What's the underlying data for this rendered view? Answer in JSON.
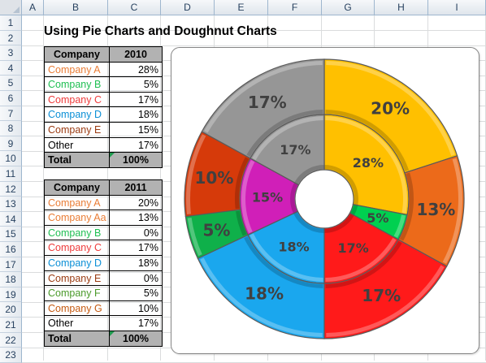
{
  "sheet": {
    "columns": [
      "A",
      "B",
      "C",
      "D",
      "E",
      "F",
      "G",
      "H",
      "I"
    ],
    "rows": [
      "1",
      "2",
      "3",
      "4",
      "5",
      "6",
      "7",
      "8",
      "9",
      "10",
      "11",
      "12",
      "13",
      "14",
      "15",
      "16",
      "17",
      "18",
      "19",
      "20",
      "21",
      "22",
      "23"
    ],
    "title": "Using Pie Charts and Doughnut Charts"
  },
  "table1": {
    "header": {
      "company": "Company",
      "year": "2010"
    },
    "rows": [
      {
        "company": "Company A",
        "value": "28%",
        "color": "#e97d36"
      },
      {
        "company": "Company B",
        "value": "5%",
        "color": "#1fbf52"
      },
      {
        "company": "Company C",
        "value": "17%",
        "color": "#ee3b3b"
      },
      {
        "company": "Company D",
        "value": "18%",
        "color": "#0a8fd6"
      },
      {
        "company": "Company E",
        "value": "15%",
        "color": "#9a3b12"
      },
      {
        "company": "Other",
        "value": "17%",
        "color": "#000000"
      }
    ],
    "total": {
      "label": "Total",
      "value": "100%"
    }
  },
  "table2": {
    "header": {
      "company": "Company",
      "year": "2011"
    },
    "rows": [
      {
        "company": "Company A",
        "value": "20%",
        "color": "#e97d36"
      },
      {
        "company": "Company Aa",
        "value": "13%",
        "color": "#e97d36"
      },
      {
        "company": "Company B",
        "value": "0%",
        "color": "#1fbf52"
      },
      {
        "company": "Company C",
        "value": "17%",
        "color": "#ee3b3b"
      },
      {
        "company": "Company D",
        "value": "18%",
        "color": "#0a8fd6"
      },
      {
        "company": "Company E",
        "value": "0%",
        "color": "#9a3b12"
      },
      {
        "company": "Company F",
        "value": "5%",
        "color": "#4a9a2a"
      },
      {
        "company": "Company G",
        "value": "10%",
        "color": "#c55a11"
      },
      {
        "company": "Other",
        "value": "17%",
        "color": "#000000"
      }
    ],
    "total": {
      "label": "Total",
      "value": "100%"
    }
  },
  "chart_data": {
    "type": "doughnut",
    "title": "",
    "start_angle_deg": 0,
    "direction": "clockwise",
    "series": [
      {
        "ring": "inner",
        "categories": [
          "Company A",
          "Company B",
          "Company C",
          "Company D",
          "Company E",
          "Other"
        ],
        "values": [
          28,
          5,
          17,
          18,
          15,
          17
        ],
        "labels": [
          "28%",
          "5%",
          "17%",
          "18%",
          "15%",
          "17%"
        ],
        "colors": [
          "#ffc000",
          "#00d050",
          "#ff1a1a",
          "#1aa7ee",
          "#d01fb8",
          "#969696"
        ]
      },
      {
        "ring": "outer",
        "categories": [
          "Company A",
          "Company Aa",
          "Company B",
          "Company C",
          "Company D",
          "Company E",
          "Company F",
          "Company G",
          "Other"
        ],
        "values": [
          20,
          13,
          0,
          17,
          18,
          0,
          5,
          10,
          17
        ],
        "labels": [
          "20%",
          "13%",
          "",
          "17%",
          "18%",
          "",
          "5%",
          "10%",
          "17%"
        ],
        "colors": [
          "#ffc000",
          "#ec6a1a",
          "#00d050",
          "#ff1a1a",
          "#1aa7ee",
          "#d01fb8",
          "#0fb04a",
          "#d63a0a",
          "#969696"
        ]
      }
    ]
  }
}
